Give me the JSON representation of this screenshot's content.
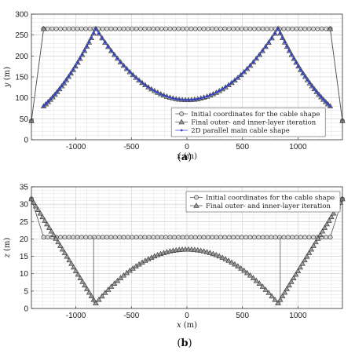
{
  "chart_data": [
    {
      "type": "line",
      "panel": "a",
      "caption_open": "(",
      "caption_letter": "a",
      "caption_close": ")",
      "xlabel": "x",
      "xunit": " (m)",
      "ylabel": "y",
      "yunit": " (m)",
      "xlim": [
        -1400,
        1400
      ],
      "ylim": [
        0,
        300
      ],
      "xticks": [
        -1000,
        -500,
        0,
        500,
        1000
      ],
      "yticks": [
        0,
        50,
        100,
        150,
        200,
        250,
        300
      ],
      "grid": true,
      "legend_position": "lower-center",
      "series": [
        {
          "name": "Initial coordinates for the cable shape",
          "marker": "circle",
          "color": "#555555",
          "segments": [
            {
              "kind": "line",
              "x": [
                -1400,
                -1290
              ],
              "y": [
                45,
                265
              ]
            },
            {
              "kind": "flat",
              "x_start": -1290,
              "x_end": 1290,
              "y": 265,
              "n": 69
            },
            {
              "kind": "line",
              "x": [
                1290,
                1400
              ],
              "y": [
                265,
                45
              ]
            }
          ]
        },
        {
          "name": "Final outer- and inner-layer iteration",
          "marker": "triangle",
          "color": "#333333",
          "segments": [
            {
              "kind": "line",
              "x": [
                -1400,
                -1290
              ],
              "y": [
                45,
                265
              ]
            },
            {
              "kind": "line",
              "x": [
                -1290,
                -820
              ],
              "y": [
                80,
                265
              ],
              "sag": 18,
              "n": 24
            },
            {
              "kind": "cable",
              "x_start": -820,
              "x_end": 820,
              "y_end": 265,
              "y_mid": 95,
              "n": 60
            },
            {
              "kind": "line",
              "x": [
                820,
                1290
              ],
              "y": [
                265,
                80
              ],
              "sag": 18,
              "n": 24
            },
            {
              "kind": "line",
              "x": [
                1290,
                1400
              ],
              "y": [
                265,
                45
              ]
            }
          ]
        },
        {
          "name": "2D parallel main cable shape",
          "marker": "dot",
          "color": "#2b3fd6",
          "segments": [
            {
              "kind": "line",
              "x": [
                -1290,
                -820
              ],
              "y": [
                80,
                265
              ],
              "sag": 18,
              "n": 24
            },
            {
              "kind": "cable",
              "x_start": -820,
              "x_end": 820,
              "y_end": 265,
              "y_mid": 95,
              "n": 60
            },
            {
              "kind": "line",
              "x": [
                820,
                1290
              ],
              "y": [
                265,
                80
              ],
              "sag": 18,
              "n": 24
            }
          ]
        }
      ]
    },
    {
      "type": "line",
      "panel": "b",
      "caption_open": "(",
      "caption_letter": "b",
      "caption_close": ")",
      "xlabel": "x",
      "xunit": " (m)",
      "ylabel": "z",
      "yunit": " (m)",
      "xlim": [
        -1400,
        1400
      ],
      "ylim": [
        0,
        35
      ],
      "xticks": [
        -1000,
        -500,
        0,
        500,
        1000
      ],
      "yticks": [
        0,
        5,
        10,
        15,
        20,
        25,
        30,
        35
      ],
      "grid": true,
      "legend_position": "top-right",
      "series": [
        {
          "name": "Initial coordinates for the cable shape",
          "marker": "circle",
          "color": "#555555",
          "segments": [
            {
              "kind": "line",
              "x": [
                -1400,
                -1290
              ],
              "y": [
                31.5,
                20.5
              ]
            },
            {
              "kind": "flat",
              "x_start": -1290,
              "x_end": 1290,
              "y": 20.5,
              "n": 69
            },
            {
              "kind": "line",
              "x": [
                1290,
                1400
              ],
              "y": [
                20.5,
                31.5
              ]
            }
          ]
        },
        {
          "name": "Final outer- and inner-layer iteration",
          "marker": "triangle",
          "color": "#333333",
          "segments": [
            {
              "kind": "line",
              "x": [
                -1400,
                -820
              ],
              "y": [
                31.5,
                1.5
              ],
              "n": 30
            },
            {
              "kind": "line",
              "x": [
                -840,
                -840
              ],
              "y": [
                1.5,
                20.5
              ]
            },
            {
              "kind": "cable",
              "x_start": -820,
              "x_end": 820,
              "y_end": 1.5,
              "y_mid": 17,
              "n": 60
            },
            {
              "kind": "line",
              "x": [
                840,
                840
              ],
              "y": [
                1.5,
                20.5
              ]
            },
            {
              "kind": "line",
              "x": [
                820,
                1400
              ],
              "y": [
                1.5,
                31.5
              ],
              "n": 30
            }
          ]
        }
      ]
    }
  ]
}
